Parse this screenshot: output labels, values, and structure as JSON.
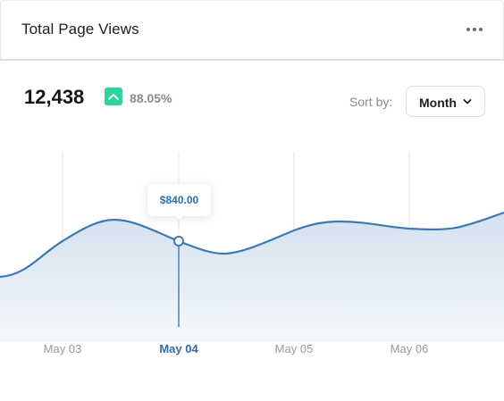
{
  "card": {
    "title": "Total Page Views",
    "menu_icon": "more-horizontal-icon"
  },
  "summary": {
    "value": "12,438",
    "trend_icon": "trend-up-icon",
    "trend_color": "#2dd4a0",
    "percent": "88.05%"
  },
  "sort": {
    "label": "Sort by:",
    "value": "Month",
    "icon": "chevron-down-icon"
  },
  "chart_data": {
    "type": "area",
    "categories": [
      "May 03",
      "May 04",
      "May 05",
      "May 06"
    ],
    "active_category": "May 04",
    "highlight": {
      "x": "May 04",
      "label": "$840.00"
    },
    "line_color": "#3d7ab2",
    "fill_color": "#d6e4f1",
    "active_label_color": "#2f6fa8",
    "inactive_label_color": "#9a9a9a",
    "grid": true
  }
}
